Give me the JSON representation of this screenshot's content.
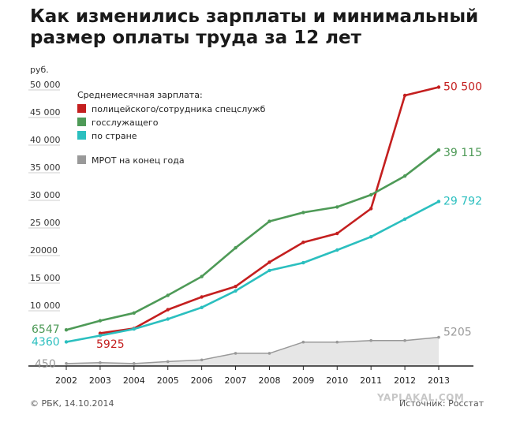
{
  "chart_data": {
    "type": "line",
    "title": "Как изменились зарплаты и минимальный размер оплаты труда за 12 лет",
    "ylabel": "руб.",
    "xlabel": "",
    "x": [
      2002,
      2003,
      2004,
      2005,
      2006,
      2007,
      2008,
      2009,
      2010,
      2011,
      2012,
      2013
    ],
    "ylim": [
      0,
      52000
    ],
    "yticks": [
      {
        "value": 10000,
        "label": "10 000"
      },
      {
        "value": 15000,
        "label": "15 000"
      },
      {
        "value": 20000,
        "label": "20000"
      },
      {
        "value": 25000,
        "label": "25 000"
      },
      {
        "value": 30000,
        "label": "30 000"
      },
      {
        "value": 35000,
        "label": "35 000"
      },
      {
        "value": 40000,
        "label": "40 000"
      },
      {
        "value": 45000,
        "label": "45 000"
      },
      {
        "value": 50000,
        "label": "50 000"
      }
    ],
    "legend_title": "Среднемесячная зарплата:",
    "legend_position": "top-left",
    "grid": false,
    "series": [
      {
        "name": "полицейского/сотрудника спецслужб",
        "color": "#c41f1f",
        "area": false,
        "values": [
          null,
          5925,
          6800,
          10200,
          12500,
          14400,
          18800,
          22400,
          24000,
          28500,
          49000,
          50500
        ],
        "start_label": "5925",
        "end_label": "50 500"
      },
      {
        "name": "госслужащего",
        "color": "#4e9a57",
        "area": false,
        "values": [
          6547,
          8200,
          9600,
          12800,
          16200,
          21400,
          26200,
          27800,
          28800,
          31000,
          34400,
          39115
        ],
        "start_label": "6547",
        "end_label": "39 115"
      },
      {
        "name": "по стране",
        "color": "#2bbfbf",
        "area": false,
        "values": [
          4360,
          5500,
          6700,
          8500,
          10600,
          13600,
          17300,
          18700,
          21000,
          23400,
          26600,
          29792
        ],
        "start_label": "4360",
        "end_label": "29 792"
      },
      {
        "name": "МРОТ на конец года",
        "color": "#999999",
        "area": true,
        "values": [
          450,
          600,
          450,
          800,
          1100,
          2300,
          2300,
          4330,
          4330,
          4611,
          4611,
          5205
        ],
        "start_label": "450",
        "end_label": "5205"
      }
    ]
  },
  "footer": {
    "copyright": "© РБК, 14.10.2014",
    "source": "Источник: Росстат",
    "watermark": "YAPLAKAL.COM"
  }
}
